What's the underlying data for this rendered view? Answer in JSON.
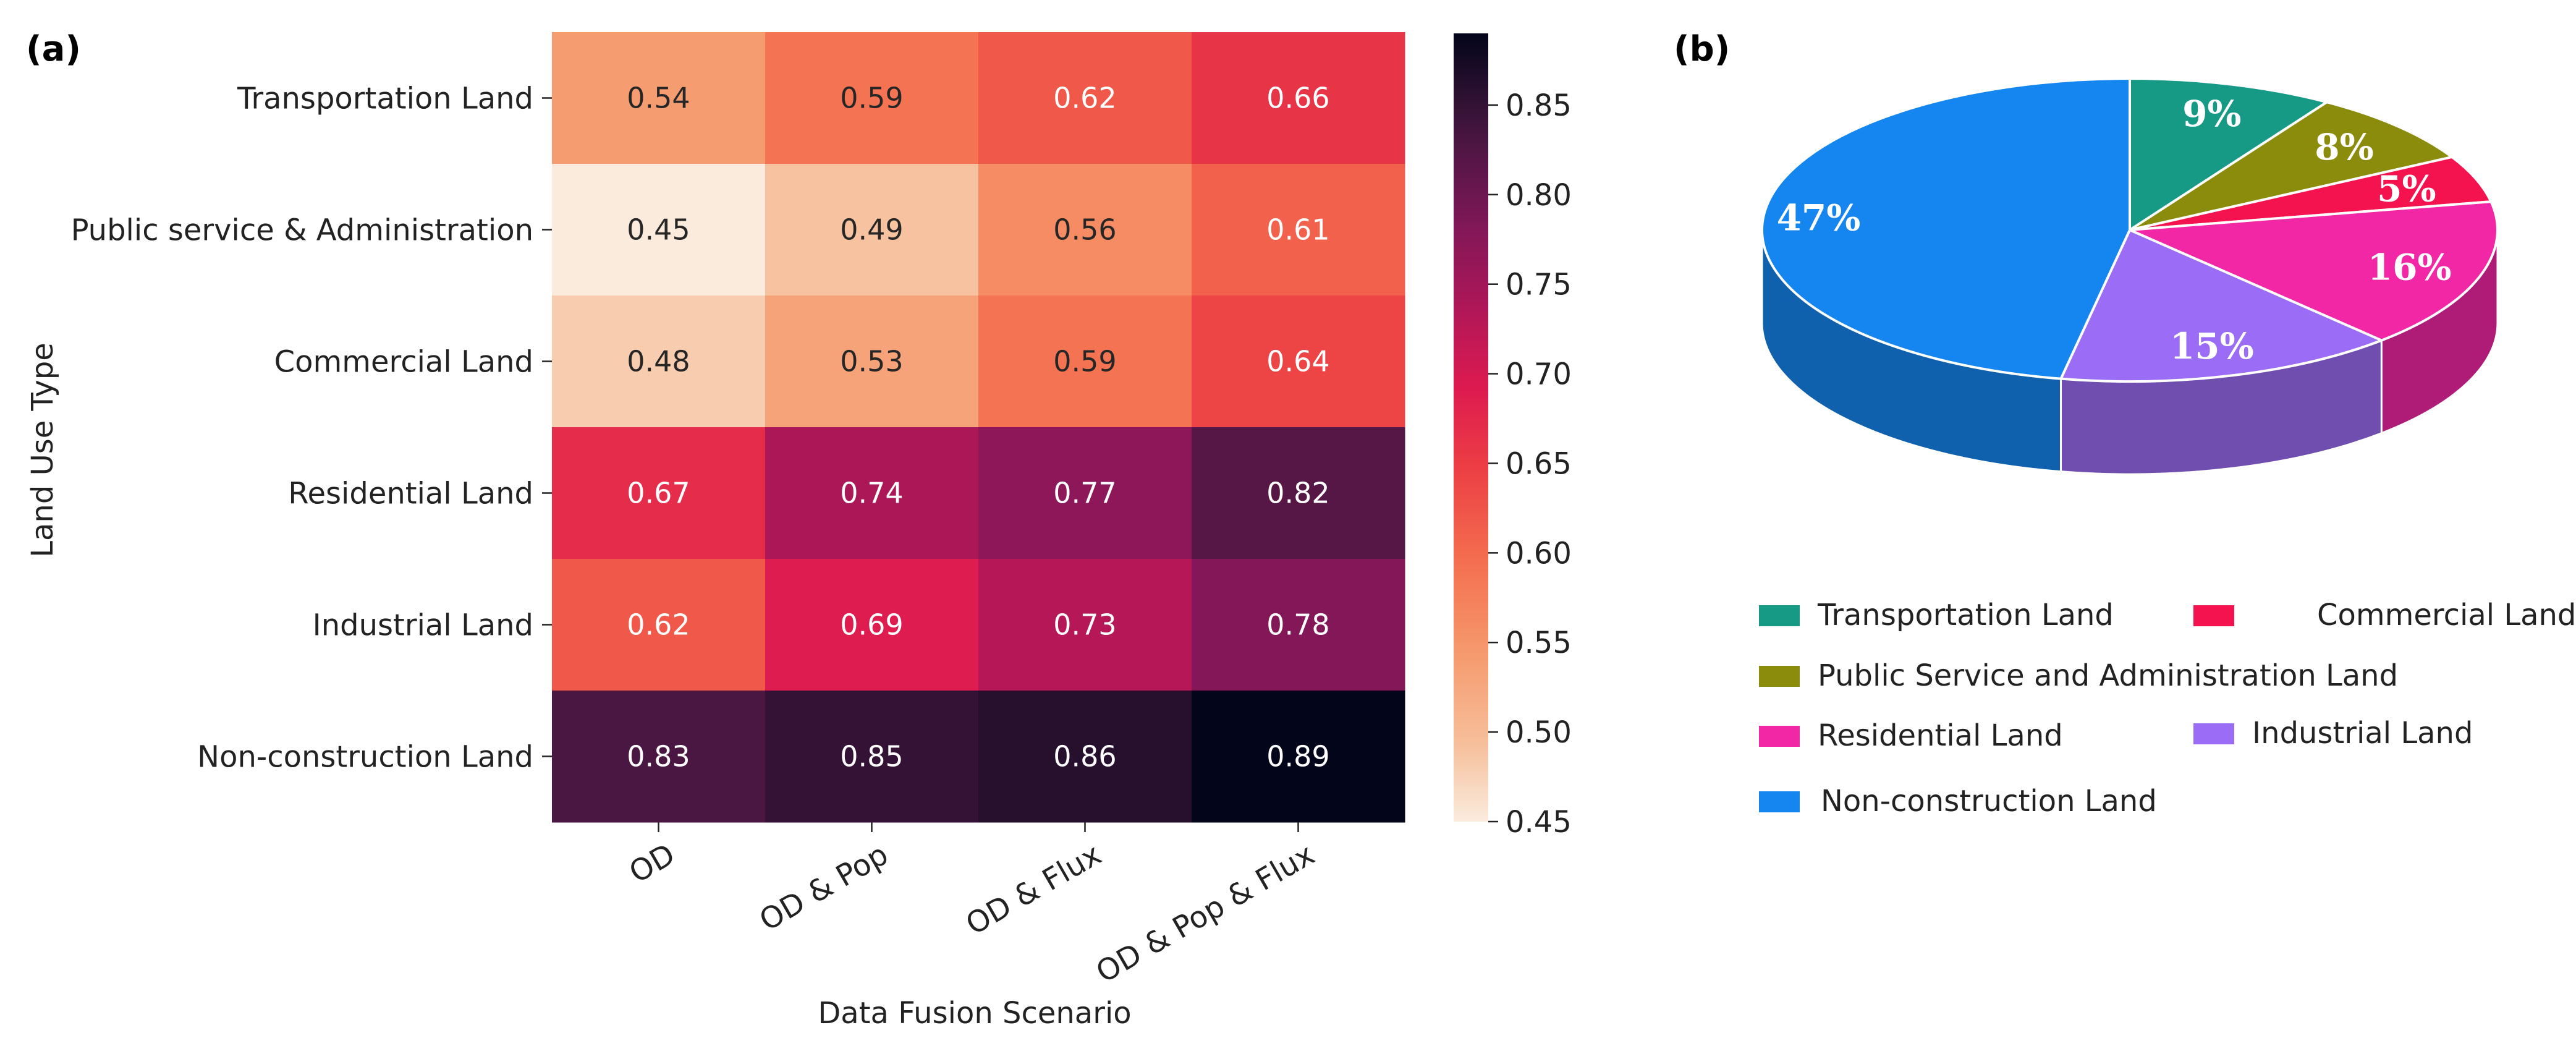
{
  "panel_labels": {
    "a": "(a)",
    "b": "(b)"
  },
  "chart_data": [
    {
      "type": "heatmap",
      "title": "",
      "xlabel": "Data Fusion Scenario",
      "ylabel": "Land Use Type",
      "x_categories": [
        "OD",
        "OD & Pop",
        "OD & Flux",
        "OD & Pop & Flux"
      ],
      "y_categories": [
        "Transportation Land",
        "Public service & Administration",
        "Commercial Land",
        "Residential Land",
        "Industrial Land",
        "Non-construction Land"
      ],
      "values": [
        [
          0.54,
          0.59,
          0.62,
          0.66
        ],
        [
          0.45,
          0.49,
          0.56,
          0.61
        ],
        [
          0.48,
          0.53,
          0.59,
          0.64
        ],
        [
          0.67,
          0.74,
          0.77,
          0.82
        ],
        [
          0.62,
          0.69,
          0.73,
          0.78
        ],
        [
          0.83,
          0.85,
          0.86,
          0.89
        ]
      ],
      "value_format": "2dp",
      "colorbar": {
        "range": [
          0.45,
          0.89
        ],
        "ticks": [
          "0.45",
          "0.50",
          "0.55",
          "0.60",
          "0.65",
          "0.70",
          "0.75",
          "0.80",
          "0.85"
        ],
        "colormap": "rocket_r"
      }
    },
    {
      "type": "pie",
      "title": "",
      "style": "3d",
      "slices": [
        {
          "label": "Transportation Land",
          "value": 9,
          "text": "9%",
          "color": "#169a86"
        },
        {
          "label": "Public Service and Administration Land",
          "value": 8,
          "text": "8%",
          "color": "#8c8c0c"
        },
        {
          "label": "Commercial Land",
          "value": 5,
          "text": "5%",
          "color": "#f5134f"
        },
        {
          "label": "Residential Land",
          "value": 16,
          "text": "16%",
          "color": "#f127a6"
        },
        {
          "label": "Industrial Land",
          "value": 15,
          "text": "15%",
          "color": "#9b6cf5"
        },
        {
          "label": "Non-construction Land",
          "value": 47,
          "text": "47%",
          "color": "#1585f0"
        }
      ],
      "legend": {
        "placement": "below",
        "order": [
          "Transportation Land",
          "Commercial Land",
          "Public Service and Administration Land",
          "Residential Land",
          "Industrial Land",
          "Non-construction Land"
        ]
      }
    }
  ]
}
